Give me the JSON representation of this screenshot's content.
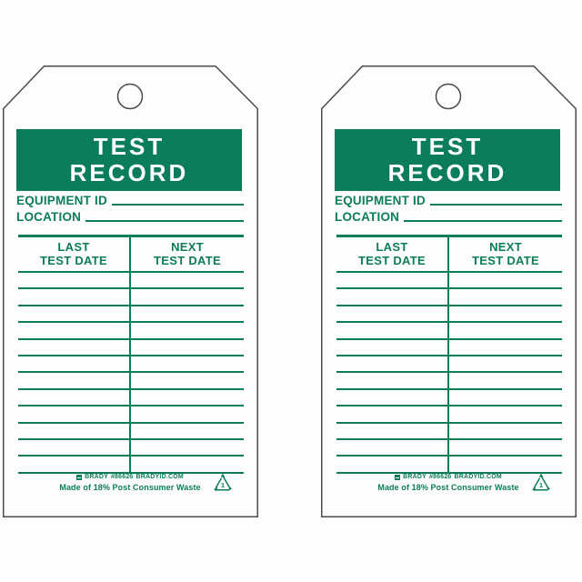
{
  "window": {
    "background": "#fdfdfd",
    "description": "Two identical green-on-white equipment test record hang tags"
  },
  "tag": {
    "title": {
      "line1": "TEST",
      "line2": "RECORD"
    },
    "fields": {
      "equipment_label": "EQUIPMENT ID",
      "location_label": "LOCATION"
    },
    "table": {
      "columns": [
        {
          "line1": "LAST",
          "line2": "TEST DATE"
        },
        {
          "line1": "NEXT",
          "line2": "TEST DATE"
        }
      ],
      "blank_row_count": 12
    },
    "footer": {
      "brand": "BRADY",
      "part_number": "#86626",
      "website": "BRADYID.COM",
      "recycled_note": "Made of 18% Post Consumer Waste",
      "recycle_code": "1"
    },
    "colors": {
      "green": "#0b7d5a",
      "outline": "#4b4b4b",
      "tag_background": "#fdfdfd",
      "title_text": "#ffffff"
    }
  },
  "instances": [
    "left-tag",
    "right-tag"
  ]
}
